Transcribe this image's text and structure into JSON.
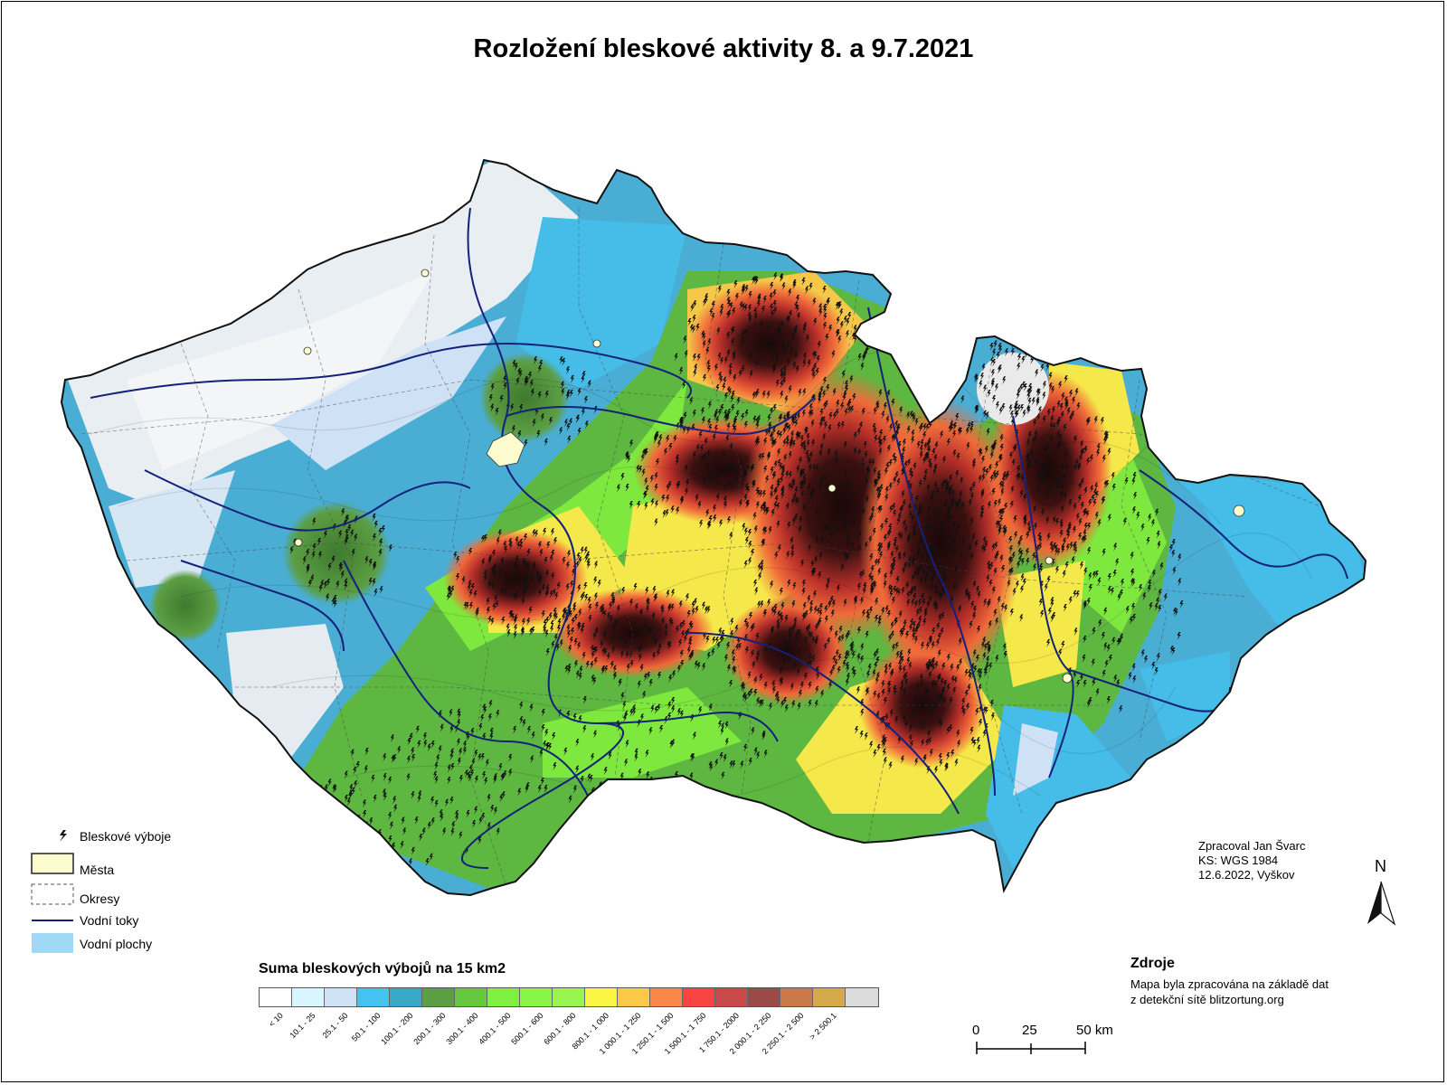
{
  "title": "Rozložení bleskové aktivity 8. a 9.7.2021",
  "legend": {
    "items": [
      {
        "id": "lightning",
        "label": "Bleskové výboje"
      },
      {
        "id": "cities",
        "label": "Města"
      },
      {
        "id": "districts",
        "label": "Okresy"
      },
      {
        "id": "rivers",
        "label": "Vodní toky"
      },
      {
        "id": "lakes",
        "label": "Vodní plochy"
      }
    ]
  },
  "scale": {
    "title": "Suma bleskových výbojů na 15 km2",
    "classes": [
      {
        "label": "< 10",
        "color": "#ffffff"
      },
      {
        "label": "10.1 - 25",
        "color": "#d9f6ff"
      },
      {
        "label": "25.1 - 50",
        "color": "#cfe1f5"
      },
      {
        "label": "50.1 - 100",
        "color": "#45c3f0"
      },
      {
        "label": "100.1 - 200",
        "color": "#39a7c6"
      },
      {
        "label": "200.1 - 300",
        "color": "#5c9e44"
      },
      {
        "label": "300.1 - 400",
        "color": "#66c83e"
      },
      {
        "label": "400.1 - 500",
        "color": "#7ff03f"
      },
      {
        "label": "500.1 - 600",
        "color": "#88f547"
      },
      {
        "label": "600.1 - 800",
        "color": "#98f54f"
      },
      {
        "label": "800.1 - 1 000",
        "color": "#fbf546"
      },
      {
        "label": "1 000.1 - 1 250",
        "color": "#fbc947"
      },
      {
        "label": "1 250.1 - 1 500",
        "color": "#f98748"
      },
      {
        "label": "1 500.1 - 1 750",
        "color": "#f84443"
      },
      {
        "label": "1 750.1 - 2000",
        "color": "#c94a4a"
      },
      {
        "label": "2 000.1 - 2 250",
        "color": "#9a4a47"
      },
      {
        "label": "2 250.1 - 2 500",
        "color": "#c97a48"
      },
      {
        "label": "> 2 500.1",
        "color": "#d3a94a"
      }
    ],
    "extra_color": "#dcdcdc"
  },
  "credits": [
    "Zpracoval Jan Švarc",
    "KS: WGS 1984",
    "12.6.2022, Vyškov"
  ],
  "source": {
    "title": "Zdroje",
    "lines": [
      "Mapa byla zpracována na základě dat",
      "z detekční sítě blitzortung.org"
    ]
  },
  "north": "N",
  "scalebar": {
    "labels": [
      "0",
      "25",
      "50 km"
    ]
  },
  "colors": {
    "river": "#13217a",
    "lake": "#9fd9f5",
    "city": "#fdfccf"
  }
}
